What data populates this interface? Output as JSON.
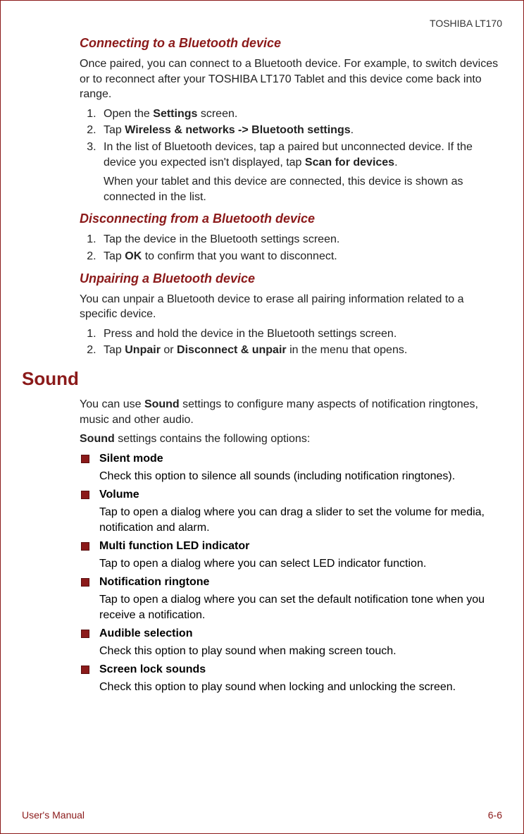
{
  "header": {
    "product": "TOSHIBA LT170"
  },
  "sections": {
    "s1": {
      "title": "Connecting to a Bluetooth device",
      "intro": "Once paired, you can connect to a Bluetooth device. For example, to switch devices or to reconnect after your TOSHIBA LT170 Tablet and this device come back into range.",
      "step1_a": "Open the ",
      "step1_b": "Settings",
      "step1_c": " screen.",
      "step2_a": "Tap ",
      "step2_b": "Wireless & networks -> Bluetooth settings",
      "step2_c": ".",
      "step3_a": "In the list of Bluetooth devices, tap a paired but unconnected device. If the device you expected isn't displayed, tap ",
      "step3_b": "Scan for devices",
      "step3_c": ".",
      "step3_note": "When your tablet and this device are connected, this device is shown as connected in the list."
    },
    "s2": {
      "title": "Disconnecting from a Bluetooth device",
      "step1": "Tap the device in the Bluetooth settings screen.",
      "step2_a": "Tap ",
      "step2_b": "OK",
      "step2_c": " to confirm that you want to disconnect."
    },
    "s3": {
      "title": "Unpairing a Bluetooth device",
      "intro": "You can unpair a Bluetooth device to erase all pairing information related to a specific device.",
      "step1": "Press and hold the device in the Bluetooth settings screen.",
      "step2_a": "Tap ",
      "step2_b": "Unpair",
      "step2_c": " or ",
      "step2_d": "Disconnect & unpair",
      "step2_e": " in the menu that opens."
    },
    "sound": {
      "title": "Sound",
      "intro_a": "You can use ",
      "intro_b": "Sound",
      "intro_c": " settings to configure many aspects of notification ringtones, music and other audio.",
      "contains_a": "Sound",
      "contains_b": " settings contains the following options:",
      "items": {
        "i1": {
          "title": "Silent mode",
          "desc": "Check this option to silence all sounds (including notification ringtones)."
        },
        "i2": {
          "title": "Volume",
          "desc": "Tap to open a dialog where you can drag a slider to set the volume for media, notification and alarm."
        },
        "i3": {
          "title": "Multi function LED indicator",
          "desc": "Tap to open a dialog where you can select LED indicator function."
        },
        "i4": {
          "title": "Notification ringtone",
          "desc": "Tap to open a dialog where you can set the default notification tone when you receive a notification."
        },
        "i5": {
          "title": "Audible selection",
          "desc": "Check this option to play sound when making screen touch."
        },
        "i6": {
          "title": "Screen lock sounds",
          "desc": "Check this option to play sound when locking and unlocking the screen."
        }
      }
    }
  },
  "footer": {
    "left": "User's Manual",
    "right": "6-6"
  }
}
